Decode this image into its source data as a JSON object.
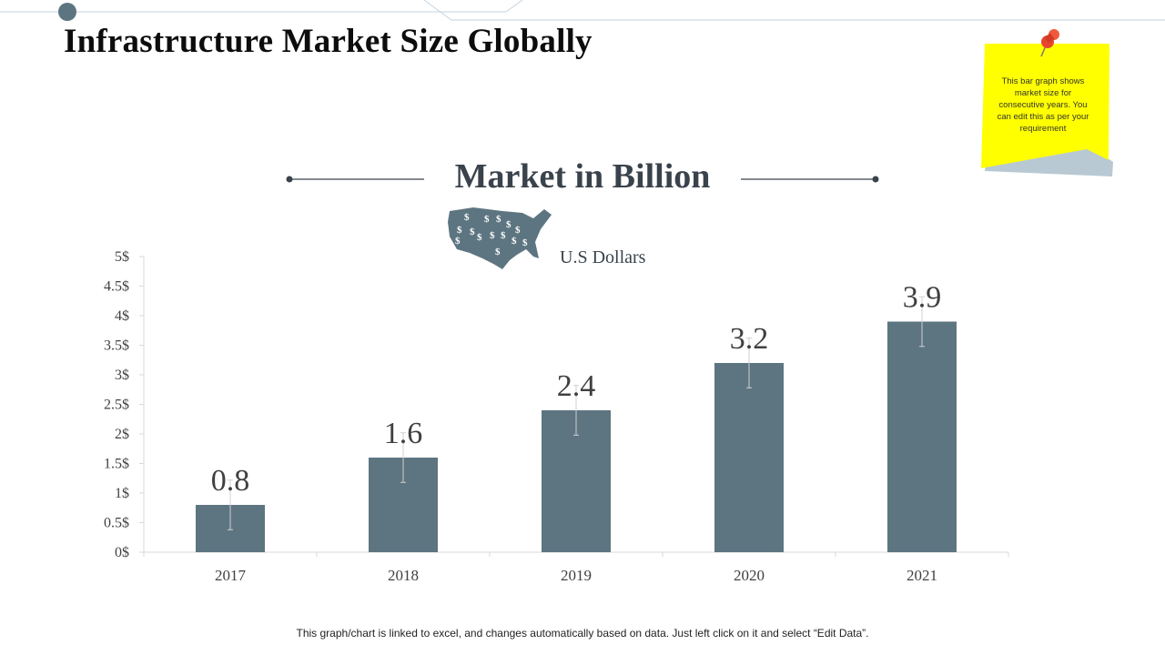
{
  "page": {
    "title": "Infrastructure Market Size Globally",
    "footer_note": "This graph/chart is linked to excel, and changes automatically based on data. Just left click on it and select “Edit Data”."
  },
  "sticky_note": {
    "text": "This bar graph shows market size for consecutive years. You can edit this as per your requirement"
  },
  "colors": {
    "bar": "#5d7581",
    "accent": "#5d7581",
    "sticky": "#ffff00"
  },
  "chart_data": {
    "type": "bar",
    "title": "Market in Billion",
    "legend": "U.S Dollars",
    "categories": [
      "2017",
      "2018",
      "2019",
      "2020",
      "2021"
    ],
    "values": [
      0.8,
      1.6,
      2.4,
      3.2,
      3.9
    ],
    "data_labels": [
      "0.8",
      "1.6",
      "2.4",
      "3.2",
      "3.9"
    ],
    "ylim": [
      0,
      5
    ],
    "yticks": [
      0,
      0.5,
      1,
      1.5,
      2,
      2.5,
      3,
      3.5,
      4,
      4.5,
      5
    ],
    "ytick_labels": [
      "0$",
      "0.5$",
      "1$",
      "1.5$",
      "2$",
      "2.5$",
      "3$",
      "3.5$",
      "4$",
      "4.5$",
      "5$"
    ],
    "error_bar": 0.42,
    "xlabel": "",
    "ylabel": "",
    "grid": false
  }
}
